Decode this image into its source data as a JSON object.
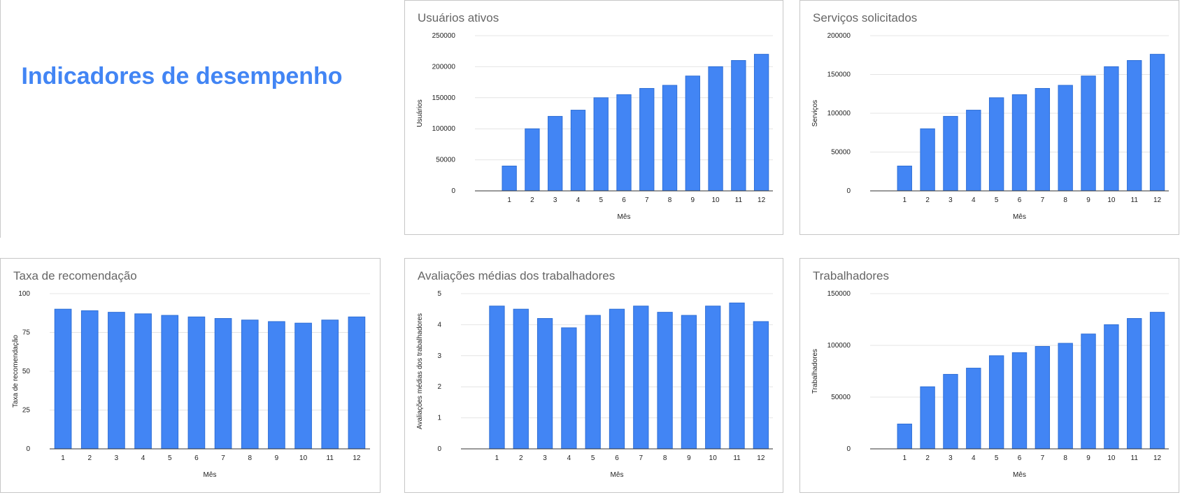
{
  "page": {
    "title": "Indicadores de desempenho",
    "bar_color": "#4285f4",
    "title_color": "#4285f4"
  },
  "chart_data": [
    {
      "id": "usuarios",
      "type": "bar",
      "title": "Usuários ativos",
      "xlabel": "Mês",
      "ylabel": "Usuários",
      "categories": [
        "1",
        "2",
        "3",
        "4",
        "5",
        "6",
        "7",
        "8",
        "9",
        "10",
        "11",
        "12"
      ],
      "values": [
        40000,
        100000,
        120000,
        130000,
        150000,
        155000,
        165000,
        170000,
        185000,
        200000,
        210000,
        220000
      ],
      "ylim": [
        0,
        250000
      ],
      "yticks": [
        0,
        50000,
        100000,
        150000,
        200000,
        250000
      ],
      "grid": true,
      "legend": "none"
    },
    {
      "id": "servicos",
      "type": "bar",
      "title": "Serviços solicitados",
      "xlabel": "Mês",
      "ylabel": "Serviços",
      "categories": [
        "1",
        "2",
        "3",
        "4",
        "5",
        "6",
        "7",
        "8",
        "9",
        "10",
        "11",
        "12"
      ],
      "values": [
        32000,
        80000,
        96000,
        104000,
        120000,
        124000,
        132000,
        136000,
        148000,
        160000,
        168000,
        176000
      ],
      "ylim": [
        0,
        200000
      ],
      "yticks": [
        0,
        50000,
        100000,
        150000,
        200000
      ],
      "grid": true,
      "legend": "none"
    },
    {
      "id": "taxa",
      "type": "bar",
      "title": "Taxa de recomendação",
      "xlabel": "Mês",
      "ylabel": "Taxa de recomendação",
      "categories": [
        "1",
        "2",
        "3",
        "4",
        "5",
        "6",
        "7",
        "8",
        "9",
        "10",
        "11",
        "12"
      ],
      "values": [
        90,
        89,
        88,
        87,
        86,
        85,
        84,
        83,
        82,
        81,
        83,
        85
      ],
      "ylim": [
        0,
        100
      ],
      "yticks": [
        0,
        25,
        50,
        75,
        100
      ],
      "grid": true,
      "legend": "none"
    },
    {
      "id": "avaliacoes",
      "type": "bar",
      "title": "Avaliações médias dos trabalhadores",
      "xlabel": "Mês",
      "ylabel": "Avaliações médias dos trabalhadores",
      "categories": [
        "1",
        "2",
        "3",
        "4",
        "5",
        "6",
        "7",
        "8",
        "9",
        "10",
        "11",
        "12"
      ],
      "values": [
        4.6,
        4.5,
        4.2,
        3.9,
        4.3,
        4.5,
        4.6,
        4.4,
        4.3,
        4.6,
        4.7,
        4.1
      ],
      "ylim": [
        0,
        5
      ],
      "yticks": [
        0,
        1,
        2,
        3,
        4,
        5
      ],
      "grid": true,
      "legend": "none"
    },
    {
      "id": "trabalhadores",
      "type": "bar",
      "title": "Trabalhadores",
      "xlabel": "Mês",
      "ylabel": "Trabalhadores",
      "categories": [
        "1",
        "2",
        "3",
        "4",
        "5",
        "6",
        "7",
        "8",
        "9",
        "10",
        "11",
        "12"
      ],
      "values": [
        24000,
        60000,
        72000,
        78000,
        90000,
        93000,
        99000,
        102000,
        111000,
        120000,
        126000,
        132000
      ],
      "ylim": [
        0,
        150000
      ],
      "yticks": [
        0,
        50000,
        100000,
        150000
      ],
      "grid": true,
      "legend": "none"
    }
  ]
}
